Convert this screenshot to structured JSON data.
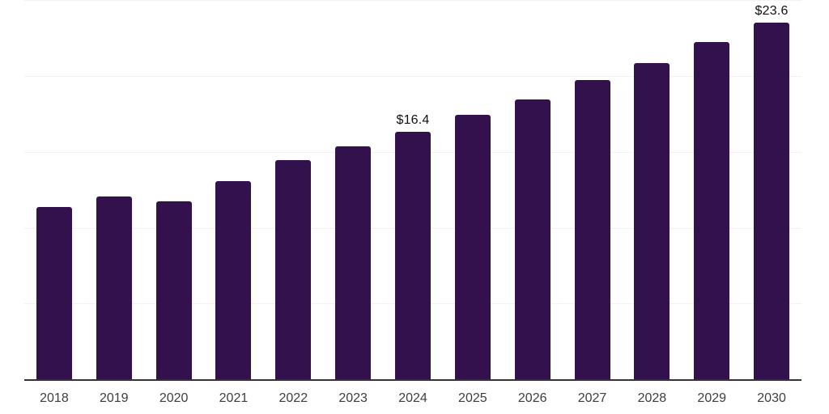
{
  "chart_data": {
    "type": "bar",
    "title": "",
    "xlabel": "",
    "ylabel": "",
    "categories": [
      "2018",
      "2019",
      "2020",
      "2021",
      "2022",
      "2023",
      "2024",
      "2025",
      "2026",
      "2027",
      "2028",
      "2029",
      "2030"
    ],
    "values": [
      11.4,
      12.1,
      11.8,
      13.1,
      14.5,
      15.4,
      16.4,
      17.5,
      18.5,
      19.8,
      20.9,
      22.3,
      23.6
    ],
    "value_labels": {
      "2024": "$16.4",
      "2030": "$23.6"
    },
    "currency_prefix": "$",
    "ylim": [
      0,
      25.07
    ],
    "gridline_values": [
      5,
      10,
      15,
      20,
      25
    ],
    "grid": "horizontal",
    "legend": "none",
    "y_axis_tick_labels_visible": false,
    "colors": {
      "bar": "#33114d",
      "gridline": "#f2f2f2",
      "axis_line": "#333333",
      "tick_label": "#3d3d3d",
      "value_label": "#111111",
      "background": "#ffffff"
    }
  }
}
